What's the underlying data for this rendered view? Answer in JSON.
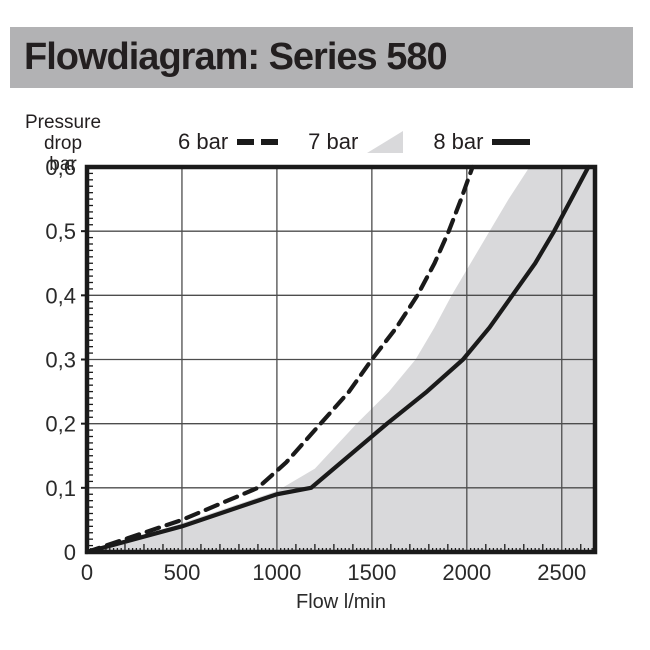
{
  "header": {
    "title": "Flowdiagram: Series 580"
  },
  "y_axis_title": {
    "line1": "Pressure drop",
    "line2": "bar"
  },
  "legend": {
    "items": [
      {
        "label": "6 bar",
        "marker": "dashed-line-sample"
      },
      {
        "label": "7 bar",
        "marker": "shaded-area-sample"
      },
      {
        "label": "8 bar",
        "marker": "solid-line-sample"
      }
    ]
  },
  "colors": {
    "header_bg": "#b2b2b4",
    "ink": "#1a1a1a",
    "grid": "#4d4d4d",
    "area_fill": "#d9d9db",
    "label": "#2a2a2a"
  },
  "chart_data": {
    "type": "line",
    "title": "Flowdiagram: Series 580",
    "xlabel": "Flow l/min",
    "ylabel": "Pressure drop bar",
    "xlim": [
      0,
      2675
    ],
    "ylim": [
      0,
      0.6
    ],
    "x_ticks": [
      0,
      500,
      1000,
      1500,
      2000,
      2500
    ],
    "x_tick_labels": [
      "0",
      "500",
      "1000",
      "1500",
      "2000",
      "2500"
    ],
    "y_ticks": [
      0,
      0.1,
      0.2,
      0.3,
      0.4,
      0.5,
      0.6
    ],
    "y_tick_labels": [
      "0",
      "0,1",
      "0,2",
      "0,3",
      "0,4",
      "0,5",
      "0,6"
    ],
    "x_minor_step": 20,
    "x_mid_step": 100,
    "y_minor_step": 0.01,
    "grid": true,
    "legend_position": "top",
    "series": [
      {
        "name": "7 bar",
        "style": "area",
        "color": "#d9d9db",
        "points": [
          [
            0,
            0
          ],
          [
            500,
            0.045
          ],
          [
            1000,
            0.095
          ],
          [
            1200,
            0.13
          ],
          [
            1420,
            0.2
          ],
          [
            1590,
            0.25
          ],
          [
            1730,
            0.3
          ],
          [
            1830,
            0.35
          ],
          [
            1920,
            0.4
          ],
          [
            2020,
            0.45
          ],
          [
            2120,
            0.5
          ],
          [
            2220,
            0.55
          ],
          [
            2330,
            0.6
          ],
          [
            2675,
            0.6
          ]
        ]
      },
      {
        "name": "6 bar",
        "style": "dashed",
        "color": "#1a1a1a",
        "points": [
          [
            0,
            0
          ],
          [
            500,
            0.05
          ],
          [
            900,
            0.1
          ],
          [
            1050,
            0.14
          ],
          [
            1230,
            0.2
          ],
          [
            1380,
            0.25
          ],
          [
            1500,
            0.3
          ],
          [
            1630,
            0.35
          ],
          [
            1740,
            0.4
          ],
          [
            1830,
            0.45
          ],
          [
            1905,
            0.5
          ],
          [
            1970,
            0.55
          ],
          [
            2030,
            0.6
          ]
        ]
      },
      {
        "name": "8 bar",
        "style": "solid",
        "color": "#1a1a1a",
        "points": [
          [
            0,
            0
          ],
          [
            500,
            0.04
          ],
          [
            1000,
            0.09
          ],
          [
            1180,
            0.1
          ],
          [
            1380,
            0.15
          ],
          [
            1580,
            0.2
          ],
          [
            1790,
            0.25
          ],
          [
            1980,
            0.3
          ],
          [
            2120,
            0.35
          ],
          [
            2240,
            0.4
          ],
          [
            2360,
            0.45
          ],
          [
            2460,
            0.5
          ],
          [
            2550,
            0.55
          ],
          [
            2640,
            0.6
          ]
        ]
      }
    ]
  }
}
